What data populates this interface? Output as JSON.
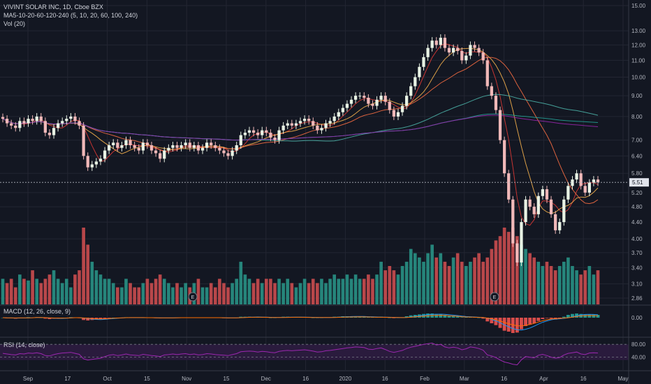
{
  "legend": {
    "title": "VIVINT SOLAR INC, 1D, Cboe BZX",
    "ma": "MA5-10-20-60-120-240 (5, 10, 20, 60, 100, 240)",
    "vol": "Vol (20)"
  },
  "macd_label": "MACD (12, 26, close, 9)",
  "rsi_label": "RSI (14, close)",
  "price_badge": "5.51",
  "earnings_marker": "E",
  "colors": {
    "background": "#131722",
    "up": "#e8f2e4",
    "down": "#f0b8b8",
    "vol_up": "#26857b",
    "vol_down": "#b8474a",
    "grid": "#232632",
    "axis_text": "#b2b5be",
    "rsi_line": "#9c27b0",
    "rsi_band": "#2a1b3d"
  },
  "chart_data": {
    "type": "candlestick",
    "price_axis": {
      "scale": "log",
      "ticks": [
        "15.00",
        "13.00",
        "12.00",
        "11.00",
        "10.00",
        "9.00",
        "8.00",
        "7.00",
        "6.40",
        "5.80",
        "5.20",
        "4.80",
        "4.40",
        "4.00",
        "3.70",
        "3.40",
        "3.10",
        "2.86"
      ],
      "current_price": 5.51
    },
    "x_axis_labels": [
      "Sep",
      "17",
      "Oct",
      "15",
      "Nov",
      "15",
      "Dec",
      "16",
      "2020",
      "16",
      "Feb",
      "Mar",
      "16",
      "Apr",
      "16",
      "May"
    ],
    "macd_axis": {
      "ticks": [
        "0.00"
      ]
    },
    "rsi_axis": {
      "ticks": [
        "80.00",
        "40.00"
      ]
    },
    "series": [
      {
        "name": "Price",
        "close": [
          7.9,
          7.7,
          7.6,
          7.5,
          7.8,
          7.7,
          7.9,
          7.8,
          8.0,
          7.8,
          7.3,
          7.2,
          7.5,
          7.7,
          7.8,
          7.9,
          8.0,
          7.8,
          7.6,
          6.4,
          6.0,
          6.1,
          6.2,
          6.3,
          6.6,
          6.8,
          6.9,
          6.7,
          6.8,
          7.0,
          6.8,
          6.7,
          6.6,
          6.9,
          6.8,
          6.6,
          6.5,
          6.3,
          6.6,
          6.7,
          6.8,
          6.7,
          6.8,
          6.9,
          6.7,
          6.8,
          6.6,
          6.7,
          6.9,
          6.8,
          6.7,
          6.6,
          6.5,
          6.4,
          6.6,
          6.8,
          7.2,
          7.3,
          7.4,
          7.3,
          7.2,
          7.4,
          7.3,
          7.1,
          7.0,
          7.4,
          7.6,
          7.7,
          7.6,
          7.7,
          7.8,
          7.9,
          7.8,
          7.6,
          7.4,
          7.5,
          7.7,
          7.8,
          8.0,
          8.2,
          8.4,
          8.6,
          8.8,
          9.0,
          9.0,
          8.9,
          8.6,
          8.5,
          8.8,
          9.0,
          8.7,
          8.3,
          8.0,
          8.2,
          8.5,
          9.0,
          9.5,
          10.0,
          10.6,
          11.2,
          11.8,
          12.3,
          12.0,
          12.5,
          11.8,
          11.5,
          11.8,
          11.6,
          11.0,
          11.3,
          12.0,
          11.8,
          11.5,
          11.0,
          9.5,
          9.0,
          8.3,
          7.0,
          5.8,
          5.0,
          3.9,
          3.5,
          4.4,
          5.0,
          4.8,
          4.6,
          5.1,
          5.3,
          5.0,
          4.6,
          4.2,
          4.4,
          5.0,
          5.4,
          5.6,
          5.8,
          5.4,
          5.2,
          5.5,
          5.6,
          5.51
        ]
      },
      {
        "name": "Volume",
        "values": [
          0.3,
          0.25,
          0.3,
          0.2,
          0.35,
          0.3,
          0.28,
          0.4,
          0.3,
          0.25,
          0.3,
          0.35,
          0.4,
          0.3,
          0.25,
          0.3,
          0.2,
          0.35,
          0.4,
          0.9,
          0.7,
          0.5,
          0.4,
          0.35,
          0.3,
          0.3,
          0.25,
          0.2,
          0.2,
          0.3,
          0.25,
          0.2,
          0.2,
          0.25,
          0.3,
          0.25,
          0.3,
          0.35,
          0.3,
          0.25,
          0.2,
          0.25,
          0.2,
          0.25,
          0.2,
          0.25,
          0.3,
          0.2,
          0.2,
          0.25,
          0.2,
          0.3,
          0.25,
          0.2,
          0.25,
          0.3,
          0.5,
          0.35,
          0.3,
          0.25,
          0.3,
          0.25,
          0.3,
          0.3,
          0.25,
          0.3,
          0.25,
          0.3,
          0.25,
          0.2,
          0.25,
          0.3,
          0.25,
          0.3,
          0.25,
          0.3,
          0.25,
          0.3,
          0.35,
          0.3,
          0.3,
          0.35,
          0.3,
          0.35,
          0.3,
          0.3,
          0.35,
          0.3,
          0.35,
          0.5,
          0.4,
          0.45,
          0.4,
          0.35,
          0.45,
          0.5,
          0.65,
          0.6,
          0.55,
          0.5,
          0.6,
          0.7,
          0.55,
          0.6,
          0.5,
          0.45,
          0.55,
          0.6,
          0.5,
          0.45,
          0.5,
          0.55,
          0.6,
          0.5,
          0.55,
          0.65,
          0.75,
          0.8,
          0.9,
          0.85,
          0.9,
          0.8,
          0.7,
          0.65,
          0.6,
          0.55,
          0.5,
          0.45,
          0.5,
          0.45,
          0.4,
          0.45,
          0.5,
          0.55,
          0.45,
          0.4,
          0.35,
          0.4,
          0.45,
          0.35,
          0.4
        ]
      }
    ],
    "macd": {
      "histogram": [
        0,
        -0.01,
        -0.01,
        -0.02,
        0,
        0,
        0.01,
        0,
        0.01,
        0,
        -0.02,
        -0.03,
        -0.02,
        -0.01,
        0,
        0,
        0.01,
        0,
        -0.01,
        -0.05,
        -0.06,
        -0.05,
        -0.04,
        -0.03,
        -0.02,
        -0.01,
        0,
        0,
        0,
        0.01,
        0,
        0,
        0,
        0,
        0,
        0,
        -0.01,
        -0.01,
        0,
        0,
        0,
        0,
        0,
        0,
        0,
        0,
        0,
        0,
        0,
        0,
        0,
        0,
        -0.01,
        -0.01,
        0,
        0,
        0.02,
        0.02,
        0.02,
        0.01,
        0.01,
        0.01,
        0.01,
        0,
        0,
        0.01,
        0.02,
        0.02,
        0.01,
        0.01,
        0.01,
        0.01,
        0.01,
        0,
        0,
        0,
        0.01,
        0.01,
        0.02,
        0.02,
        0.03,
        0.03,
        0.03,
        0.03,
        0.03,
        0.02,
        0.01,
        0.01,
        0.01,
        0.02,
        0.01,
        0,
        -0.01,
        0,
        0.01,
        0.03,
        0.05,
        0.06,
        0.07,
        0.08,
        0.09,
        0.09,
        0.08,
        0.08,
        0.06,
        0.04,
        0.04,
        0.03,
        0.01,
        0.01,
        0.02,
        0.01,
        0,
        -0.02,
        -0.08,
        -0.12,
        -0.16,
        -0.22,
        -0.28,
        -0.3,
        -0.33,
        -0.32,
        -0.25,
        -0.18,
        -0.15,
        -0.12,
        -0.07,
        -0.03,
        -0.01,
        -0.02,
        -0.04,
        -0.03,
        0.02,
        0.06,
        0.08,
        0.09,
        0.08,
        0.07,
        0.07,
        0.07,
        0.06
      ]
    },
    "rsi": {
      "values": [
        52,
        50,
        48,
        47,
        51,
        50,
        53,
        52,
        54,
        51,
        45,
        44,
        48,
        51,
        53,
        54,
        55,
        52,
        49,
        35,
        31,
        33,
        35,
        37,
        42,
        46,
        48,
        45,
        47,
        50,
        47,
        46,
        45,
        49,
        47,
        45,
        44,
        42,
        47,
        48,
        50,
        48,
        50,
        51,
        48,
        50,
        47,
        48,
        51,
        50,
        48,
        47,
        46,
        45,
        48,
        51,
        57,
        58,
        59,
        58,
        56,
        58,
        57,
        55,
        54,
        58,
        60,
        61,
        60,
        61,
        62,
        63,
        61,
        59,
        56,
        57,
        60,
        61,
        63,
        65,
        67,
        69,
        70,
        72,
        71,
        70,
        65,
        64,
        67,
        69,
        64,
        58,
        55,
        58,
        61,
        67,
        71,
        74,
        77,
        80,
        82,
        84,
        78,
        80,
        72,
        69,
        71,
        69,
        63,
        66,
        72,
        70,
        67,
        62,
        47,
        44,
        39,
        31,
        25,
        22,
        18,
        16,
        32,
        42,
        40,
        38,
        46,
        49,
        45,
        40,
        37,
        39,
        47,
        52,
        54,
        56,
        50,
        48,
        53,
        54,
        53
      ]
    }
  }
}
